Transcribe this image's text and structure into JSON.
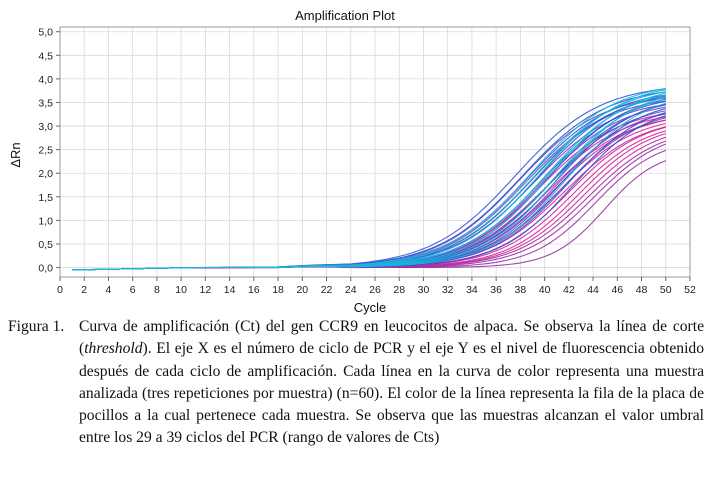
{
  "chart_data": {
    "type": "line",
    "title": "Amplification Plot",
    "xlabel": "Cycle",
    "ylabel": "ΔRn",
    "xlim": [
      0,
      52
    ],
    "ylim": [
      -0.2,
      5.1
    ],
    "x_ticks": [
      0,
      2,
      4,
      6,
      8,
      10,
      12,
      14,
      16,
      18,
      20,
      22,
      24,
      26,
      28,
      30,
      32,
      34,
      36,
      38,
      40,
      42,
      44,
      46,
      48,
      50,
      52
    ],
    "y_ticks": [
      "0,0",
      "0,5",
      "1,0",
      "1,5",
      "2,0",
      "2,5",
      "3,0",
      "3,5",
      "4,0",
      "4,5",
      "5,0"
    ],
    "y_tick_values": [
      0,
      0.5,
      1.0,
      1.5,
      2.0,
      2.5,
      3.0,
      3.5,
      4.0,
      4.5,
      5.0
    ],
    "x_range_plotted": [
      1,
      50
    ],
    "grid": true,
    "legend": "none",
    "colors": {
      "cyan": "#19b6d8",
      "blue": "#2a55d6",
      "purple": "#7e3fc0",
      "magenta": "#d5229a",
      "violet": "#9a2fa6"
    },
    "curve_model": "logistic: baseline + plateau/(1+exp(-(cycle-midpoint)/slope))",
    "series": [
      {
        "color": "cyan",
        "plateau": 3.95,
        "midpoint": 38.8,
        "slope": 3.5
      },
      {
        "color": "cyan",
        "plateau": 3.9,
        "midpoint": 39.2,
        "slope": 3.5
      },
      {
        "color": "cyan",
        "plateau": 3.95,
        "midpoint": 39.6,
        "slope": 3.4
      },
      {
        "color": "cyan",
        "plateau": 3.85,
        "midpoint": 40.0,
        "slope": 3.4
      },
      {
        "color": "cyan",
        "plateau": 3.9,
        "midpoint": 40.4,
        "slope": 3.3
      },
      {
        "color": "cyan",
        "plateau": 3.8,
        "midpoint": 40.8,
        "slope": 3.3
      },
      {
        "color": "cyan",
        "plateau": 3.85,
        "midpoint": 41.2,
        "slope": 3.2
      },
      {
        "color": "cyan",
        "plateau": 3.75,
        "midpoint": 41.8,
        "slope": 3.2
      },
      {
        "color": "blue",
        "plateau": 3.9,
        "midpoint": 37.6,
        "slope": 3.5
      },
      {
        "color": "blue",
        "plateau": 3.85,
        "midpoint": 38.1,
        "slope": 3.5
      },
      {
        "color": "blue",
        "plateau": 3.8,
        "midpoint": 38.6,
        "slope": 3.5
      },
      {
        "color": "blue",
        "plateau": 3.75,
        "midpoint": 39.0,
        "slope": 3.4
      },
      {
        "color": "blue",
        "plateau": 3.8,
        "midpoint": 39.4,
        "slope": 3.4
      },
      {
        "color": "blue",
        "plateau": 3.7,
        "midpoint": 39.8,
        "slope": 3.4
      },
      {
        "color": "blue",
        "plateau": 3.75,
        "midpoint": 40.2,
        "slope": 3.3
      },
      {
        "color": "blue",
        "plateau": 3.65,
        "midpoint": 40.6,
        "slope": 3.3
      },
      {
        "color": "blue",
        "plateau": 3.7,
        "midpoint": 41.0,
        "slope": 3.3
      },
      {
        "color": "blue",
        "plateau": 3.6,
        "midpoint": 41.4,
        "slope": 3.2
      },
      {
        "color": "blue",
        "plateau": 3.55,
        "midpoint": 41.9,
        "slope": 3.2
      },
      {
        "color": "blue",
        "plateau": 3.5,
        "midpoint": 42.4,
        "slope": 3.1
      },
      {
        "color": "purple",
        "plateau": 3.7,
        "midpoint": 37.9,
        "slope": 3.4
      },
      {
        "color": "purple",
        "plateau": 3.65,
        "midpoint": 38.5,
        "slope": 3.4
      },
      {
        "color": "purple",
        "plateau": 3.6,
        "midpoint": 39.1,
        "slope": 3.4
      },
      {
        "color": "purple",
        "plateau": 3.55,
        "midpoint": 39.7,
        "slope": 3.3
      },
      {
        "color": "purple",
        "plateau": 3.5,
        "midpoint": 40.3,
        "slope": 3.3
      },
      {
        "color": "purple",
        "plateau": 3.45,
        "midpoint": 40.9,
        "slope": 3.2
      },
      {
        "color": "purple",
        "plateau": 3.4,
        "midpoint": 41.5,
        "slope": 3.2
      },
      {
        "color": "magenta",
        "plateau": 3.4,
        "midpoint": 39.6,
        "slope": 3.3
      },
      {
        "color": "magenta",
        "plateau": 3.35,
        "midpoint": 40.0,
        "slope": 3.3
      },
      {
        "color": "magenta",
        "plateau": 3.3,
        "midpoint": 40.4,
        "slope": 3.3
      },
      {
        "color": "magenta",
        "plateau": 3.3,
        "midpoint": 40.8,
        "slope": 3.2
      },
      {
        "color": "magenta",
        "plateau": 3.25,
        "midpoint": 41.2,
        "slope": 3.2
      },
      {
        "color": "magenta",
        "plateau": 3.2,
        "midpoint": 41.6,
        "slope": 3.2
      },
      {
        "color": "magenta",
        "plateau": 3.2,
        "midpoint": 42.0,
        "slope": 3.1
      },
      {
        "color": "magenta",
        "plateau": 3.15,
        "midpoint": 42.4,
        "slope": 3.1
      },
      {
        "color": "magenta",
        "plateau": 3.1,
        "midpoint": 42.8,
        "slope": 3.0
      },
      {
        "color": "magenta",
        "plateau": 3.05,
        "midpoint": 43.2,
        "slope": 3.0
      },
      {
        "color": "violet",
        "plateau": 3.0,
        "midpoint": 43.6,
        "slope": 3.0
      },
      {
        "color": "violet",
        "plateau": 2.95,
        "midpoint": 44.0,
        "slope": 2.9
      },
      {
        "color": "violet",
        "plateau": 2.75,
        "midpoint": 44.2,
        "slope": 2.6
      },
      {
        "color": "violet",
        "plateau": 2.5,
        "midpoint": 45.0,
        "slope": 2.2
      }
    ]
  },
  "caption": {
    "label": "Figura 1.",
    "text_before_italic": "Curva de amplificación (Ct) del gen CCR9 en leucocitos de alpaca. Se observa la línea de corte (",
    "italic": "threshold",
    "text_after_italic": "). El eje X es el número de ciclo de PCR y el eje Y es el nivel de fluorescencia obtenido después de cada ciclo de amplificación. Cada línea en la curva de color representa una muestra analizada (tres repeticiones por muestra) (n=60). El color de la línea representa la fila de la placa de pocillos a la cual pertenece cada muestra. Se observa que las muestras alcanzan el valor umbral entre los 29 a 39 ciclos del PCR (rango de valores de Cts)"
  }
}
